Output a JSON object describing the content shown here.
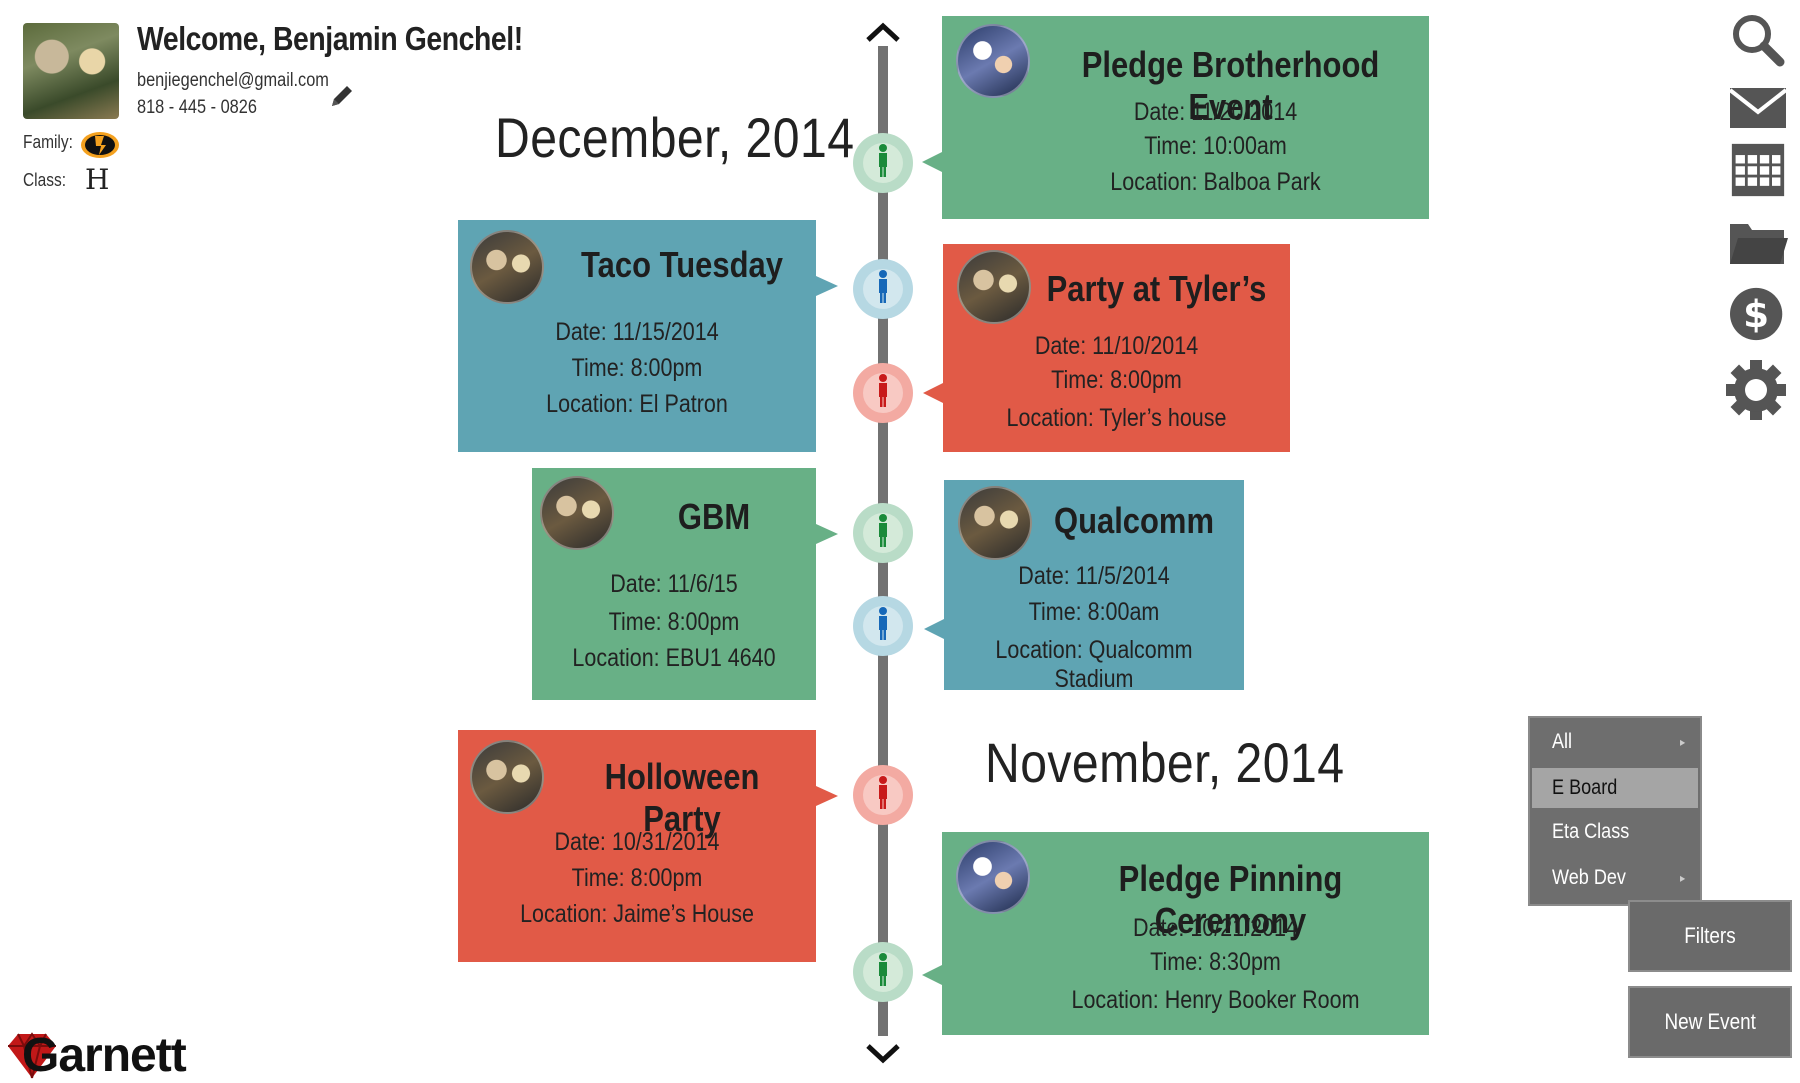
{
  "profile": {
    "welcome": "Welcome, Benjamin Genchel!",
    "email": "benjiegenchel@gmail.com",
    "phone": "818 - 445 - 0826",
    "family_label": "Family:",
    "class_label": "Class:",
    "class_value": "H"
  },
  "logo": {
    "text": "Garnett"
  },
  "timeline": {
    "months": [
      "December, 2014",
      "November, 2014"
    ],
    "events": [
      {
        "title": "Pledge Brotherhood Event",
        "date": "Date: 11/20/2014",
        "time": "Time: 10:00am",
        "location": "Location: Balboa Park",
        "color": "#68b086"
      },
      {
        "title": "Taco Tuesday",
        "date": "Date: 11/15/2014",
        "time": "Time: 8:00pm",
        "location": "Location: El Patron",
        "color": "#5fa4b3"
      },
      {
        "title": "Party at Tyler’s",
        "date": "Date: 11/10/2014",
        "time": "Time: 8:00pm",
        "location": "Location: Tyler’s house",
        "color": "#e15a47"
      },
      {
        "title": "GBM",
        "date": "Date: 11/6/15",
        "time": "Time: 8:00pm",
        "location": "Location: EBU1 4640",
        "color": "#68b086"
      },
      {
        "title": "Qualcomm",
        "date": "Date: 11/5/2014",
        "time": "Time: 8:00am",
        "location": "Location: Qualcomm Stadium",
        "color": "#5fa4b3"
      },
      {
        "title": "Holloween Party",
        "date": "Date: 10/31/2014",
        "time": "Time: 8:00pm",
        "location": "Location: Jaime’s House",
        "color": "#e15a47"
      },
      {
        "title": "Pledge Pinning Ceremony",
        "date": "Date: 10/21/2014",
        "time": "Time: 8:30pm",
        "location": "Location: Henry Booker Room",
        "color": "#68b086"
      }
    ]
  },
  "toolbar": {
    "icons": [
      "search-icon",
      "mail-icon",
      "calendar-icon",
      "folder-icon",
      "dollar-icon",
      "gear-icon"
    ]
  },
  "filter_menu": {
    "items": [
      {
        "label": "All",
        "has_submenu": true
      },
      {
        "label": "E Board",
        "selected": true
      },
      {
        "label": "Eta Class"
      },
      {
        "label": "Web Dev",
        "has_submenu": true
      }
    ],
    "chevron": "▸"
  },
  "buttons": {
    "filters": "Filters",
    "new_event": "New Event"
  },
  "colors": {
    "green": "#68b086",
    "blue": "#5fa4b3",
    "red": "#e15a47",
    "line": "#727272"
  }
}
